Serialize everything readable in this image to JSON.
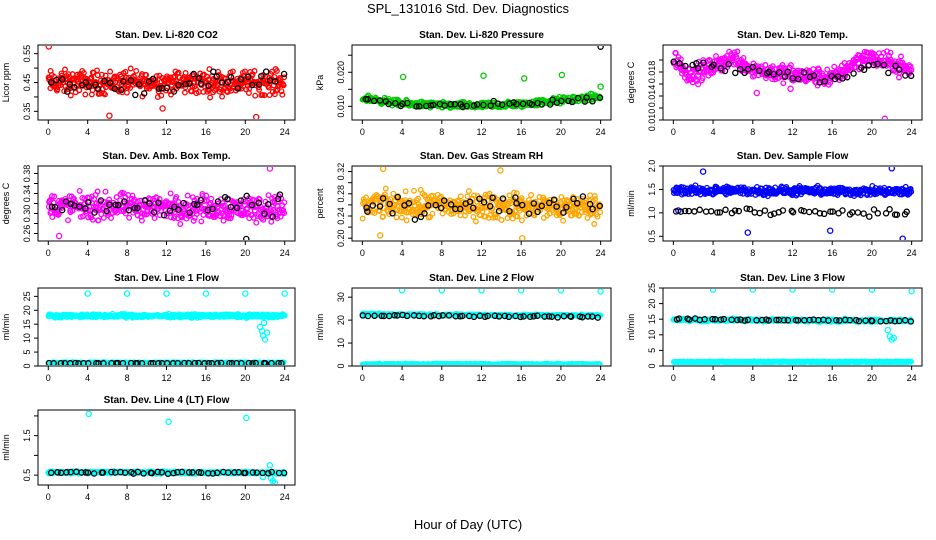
{
  "figure": {
    "title": "SPL_131016  Std. Dev. Diagnostics",
    "xlabel": "Hour of Day (UTC)"
  },
  "colors": {
    "black_series": "#000000",
    "red": "#ff0000",
    "green": "#00cc00",
    "magenta": "#ff00ff",
    "orange": "#ffa500",
    "blue": "#0000ff",
    "cyan": "#00ffff"
  },
  "chart_data": [
    {
      "type": "scatter",
      "title": "Stan. Dev. Li-820 CO2",
      "ylabel": "Licor ppm",
      "xlim": [
        0,
        24
      ],
      "ylim": [
        0.32,
        0.58
      ],
      "yticks": [
        0.35,
        0.4,
        0.45,
        0.5,
        0.55
      ],
      "ytick_labels": [
        "0.35",
        "",
        "0.45",
        "",
        "0.55"
      ],
      "xticks": [
        0,
        4,
        8,
        12,
        16,
        20,
        24
      ],
      "grid": false,
      "series": [
        {
          "color": "#ff0000",
          "n": 420,
          "baseline": [
            [
              0,
              0.45
            ],
            [
              24,
              0.45
            ]
          ],
          "spread": 0.035,
          "outliers": [
            [
              0.05,
              0.575
            ],
            [
              6.2,
              0.335
            ],
            [
              21.1,
              0.33
            ],
            [
              11.6,
              0.36
            ]
          ]
        },
        {
          "color": "#000000",
          "n": 48,
          "baseline": [
            [
              0,
              0.44
            ],
            [
              24,
              0.45
            ]
          ],
          "spread": 0.03,
          "outliers": []
        }
      ]
    },
    {
      "type": "scatter",
      "title": "Stan. Dev. Li-820 Pressure",
      "ylabel": "kPa",
      "xlim": [
        0,
        24
      ],
      "ylim": [
        0.006,
        0.028
      ],
      "yticks": [
        0.01,
        0.015,
        0.02,
        0.025
      ],
      "ytick_labels": [
        "0.010",
        "",
        "0.020",
        ""
      ],
      "xticks": [
        0,
        4,
        8,
        12,
        16,
        20,
        24
      ],
      "grid": false,
      "series": [
        {
          "color": "#00cc00",
          "n": 420,
          "baseline": [
            [
              0,
              0.0125
            ],
            [
              4,
              0.0108
            ],
            [
              8,
              0.0103
            ],
            [
              12,
              0.0102
            ],
            [
              16,
              0.0106
            ],
            [
              20,
              0.0118
            ],
            [
              24,
              0.0128
            ]
          ],
          "spread": 0.0008,
          "outliers": [
            [
              4.1,
              0.0186
            ],
            [
              12.2,
              0.019
            ],
            [
              16.3,
              0.0182
            ],
            [
              20.1,
              0.0192
            ],
            [
              24,
              0.0158
            ]
          ]
        },
        {
          "color": "#000000",
          "n": 48,
          "baseline": [
            [
              0,
              0.012
            ],
            [
              4,
              0.0105
            ],
            [
              12,
              0.0102
            ],
            [
              20,
              0.0114
            ],
            [
              24,
              0.0122
            ]
          ],
          "spread": 0.0008,
          "outliers": [
            [
              24,
              0.0275
            ]
          ]
        }
      ]
    },
    {
      "type": "scatter",
      "title": "Stan. Dev. Li-820 Temp.",
      "ylabel": "degrees C",
      "xlim": [
        0,
        24
      ],
      "ylim": [
        0.01,
        0.0225
      ],
      "yticks": [
        0.01,
        0.012,
        0.014,
        0.016,
        0.018,
        0.02
      ],
      "ytick_labels": [
        "0.010",
        "",
        "0.014",
        "",
        "0.018",
        ""
      ],
      "xticks": [
        0,
        4,
        8,
        12,
        16,
        20,
        24
      ],
      "grid": false,
      "series": [
        {
          "color": "#ff00ff",
          "n": 420,
          "baseline": [
            [
              0,
              0.0205
            ],
            [
              1.5,
              0.0175
            ],
            [
              4,
              0.0188
            ],
            [
              6,
              0.0205
            ],
            [
              8,
              0.0185
            ],
            [
              12,
              0.0175
            ],
            [
              16,
              0.017
            ],
            [
              19,
              0.0205
            ],
            [
              22,
              0.0195
            ],
            [
              24,
              0.0182
            ]
          ],
          "spread": 0.0013,
          "outliers": [
            [
              21.3,
              0.0102
            ],
            [
              2.5,
              0.016
            ],
            [
              8.4,
              0.0145
            ],
            [
              11.8,
              0.0152
            ]
          ]
        },
        {
          "color": "#000000",
          "n": 48,
          "baseline": [
            [
              0,
              0.0195
            ],
            [
              4,
              0.0188
            ],
            [
              8,
              0.0183
            ],
            [
              12,
              0.0175
            ],
            [
              16,
              0.017
            ],
            [
              20,
              0.019
            ],
            [
              24,
              0.0178
            ]
          ],
          "spread": 0.0008,
          "outliers": []
        }
      ]
    },
    {
      "type": "scatter",
      "title": "Stan. Dev. Amb. Box Temp.",
      "ylabel": "degrees C",
      "xlim": [
        0,
        24
      ],
      "ylim": [
        0.245,
        0.395
      ],
      "yticks": [
        0.26,
        0.28,
        0.3,
        0.32,
        0.34,
        0.36,
        0.38
      ],
      "ytick_labels": [
        "0.26",
        "",
        "0.30",
        "",
        "0.34",
        "",
        "0.38"
      ],
      "xticks": [
        0,
        4,
        8,
        12,
        16,
        20,
        24
      ],
      "grid": false,
      "series": [
        {
          "color": "#ff00ff",
          "n": 420,
          "baseline": [
            [
              0,
              0.315
            ],
            [
              24,
              0.31
            ]
          ],
          "spread": 0.022,
          "outliers": [
            [
              22.5,
              0.39
            ],
            [
              1.1,
              0.255
            ]
          ]
        },
        {
          "color": "#000000",
          "n": 48,
          "baseline": [
            [
              0,
              0.315
            ],
            [
              24,
              0.31
            ]
          ],
          "spread": 0.02,
          "outliers": [
            [
              20.1,
              0.249
            ]
          ]
        }
      ]
    },
    {
      "type": "scatter",
      "title": "Stan. Dev. Gas Stream RH",
      "ylabel": "percent",
      "xlim": [
        0,
        24
      ],
      "ylim": [
        0.195,
        0.33
      ],
      "yticks": [
        0.2,
        0.22,
        0.24,
        0.26,
        0.28,
        0.3,
        0.32
      ],
      "ytick_labels": [
        "0.20",
        "",
        "0.24",
        "",
        "0.28",
        "",
        "0.32"
      ],
      "xticks": [
        0,
        4,
        8,
        12,
        16,
        20,
        24
      ],
      "grid": false,
      "series": [
        {
          "color": "#ffa500",
          "n": 420,
          "baseline": [
            [
              0,
              0.26
            ],
            [
              24,
              0.255
            ]
          ],
          "spread": 0.02,
          "outliers": [
            [
              2.1,
              0.325
            ],
            [
              13.9,
              0.322
            ],
            [
              1.8,
              0.205
            ],
            [
              16.1,
              0.2
            ]
          ]
        },
        {
          "color": "#000000",
          "n": 48,
          "baseline": [
            [
              0,
              0.262
            ],
            [
              24,
              0.255
            ]
          ],
          "spread": 0.02,
          "outliers": []
        }
      ]
    },
    {
      "type": "scatter",
      "title": "Stan. Dev. Sample Flow",
      "ylabel": "ml/min",
      "xlim": [
        0,
        24
      ],
      "ylim": [
        0.4,
        2.0
      ],
      "yticks": [
        0.5,
        1.0,
        1.5,
        2.0
      ],
      "ytick_labels": [
        "0.5",
        "1.0",
        "1.5",
        "2.0"
      ],
      "xticks": [
        0,
        4,
        8,
        12,
        16,
        20,
        24
      ],
      "grid": false,
      "series": [
        {
          "color": "#0000ff",
          "n": 420,
          "baseline": [
            [
              0,
              1.48
            ],
            [
              24,
              1.45
            ]
          ],
          "spread": 0.08,
          "outliers": [
            [
              3.0,
              1.88
            ],
            [
              7.5,
              0.58
            ],
            [
              15.8,
              0.62
            ],
            [
              23.1,
              0.45
            ],
            [
              22.0,
              1.95
            ],
            [
              0.5,
              1.05
            ]
          ]
        },
        {
          "color": "#000000",
          "n": 48,
          "baseline": [
            [
              0,
              1.05
            ],
            [
              24,
              1.0
            ]
          ],
          "spread": 0.06,
          "outliers": []
        }
      ]
    },
    {
      "type": "scatter",
      "title": "Stan. Dev. Line 1 Flow",
      "ylabel": "ml/min",
      "xlim": [
        0,
        24
      ],
      "ylim": [
        0,
        28
      ],
      "yticks": [
        0,
        5,
        10,
        15,
        20,
        25
      ],
      "ytick_labels": [
        "0",
        "5",
        "10",
        "15",
        "20",
        "25"
      ],
      "xticks": [
        0,
        4,
        8,
        12,
        16,
        20,
        24
      ],
      "grid": false,
      "series": [
        {
          "color": "#00ffff",
          "n": 420,
          "baseline": [
            [
              0,
              18.0
            ],
            [
              24,
              18.0
            ]
          ],
          "spread": 0.5,
          "outliers": [
            [
              4.0,
              26.0
            ],
            [
              8.0,
              26.0
            ],
            [
              12.0,
              26.0
            ],
            [
              16.0,
              26.0
            ],
            [
              20.0,
              26.0
            ],
            [
              24.0,
              26.0
            ],
            [
              21.5,
              14.0
            ],
            [
              21.7,
              12.5
            ],
            [
              21.8,
              11.0
            ],
            [
              22.0,
              9.5
            ],
            [
              22.2,
              12.0
            ],
            [
              21.9,
              15.5
            ]
          ]
        },
        {
          "color": "#00ffff",
          "n": 200,
          "baseline": [
            [
              0,
              1.2
            ],
            [
              24,
              1.2
            ]
          ],
          "spread": 0.15,
          "outliers": []
        },
        {
          "color": "#000000",
          "n": 48,
          "baseline": [
            [
              0,
              1.0
            ],
            [
              24,
              1.0
            ]
          ],
          "spread": 0.05,
          "outliers": []
        }
      ]
    },
    {
      "type": "scatter",
      "title": "Stan. Dev. Line 2 Flow",
      "ylabel": "ml/min",
      "xlim": [
        0,
        24
      ],
      "ylim": [
        0,
        34
      ],
      "yticks": [
        0,
        10,
        20,
        30
      ],
      "ytick_labels": [
        "0",
        "10",
        "20",
        "30"
      ],
      "xticks": [
        0,
        4,
        8,
        12,
        16,
        20,
        24
      ],
      "grid": false,
      "series": [
        {
          "color": "#00ffff",
          "n": 300,
          "baseline": [
            [
              0,
              22.5
            ],
            [
              24,
              22.0
            ]
          ],
          "spread": 0.35,
          "outliers": [
            [
              4.0,
              33.0
            ],
            [
              8.0,
              33.0
            ],
            [
              12.0,
              33.0
            ],
            [
              16.0,
              33.0
            ],
            [
              20.0,
              33.0
            ],
            [
              24.0,
              32.5
            ]
          ]
        },
        {
          "color": "#00ffff",
          "n": 250,
          "baseline": [
            [
              0,
              0.8
            ],
            [
              24,
              0.8
            ]
          ],
          "spread": 0.2,
          "outliers": []
        },
        {
          "color": "#000000",
          "n": 48,
          "baseline": [
            [
              0,
              22.0
            ],
            [
              24,
              21.5
            ]
          ],
          "spread": 0.3,
          "outliers": []
        }
      ]
    },
    {
      "type": "scatter",
      "title": "Stan. Dev. Line 3 Flow",
      "ylabel": "ml/min",
      "xlim": [
        0,
        24
      ],
      "ylim": [
        0,
        25
      ],
      "yticks": [
        0,
        5,
        10,
        15,
        20,
        25
      ],
      "ytick_labels": [
        "0",
        "5",
        "10",
        "15",
        "20",
        "25"
      ],
      "xticks": [
        0,
        4,
        8,
        12,
        16,
        20,
        24
      ],
      "grid": false,
      "series": [
        {
          "color": "#00ffff",
          "n": 300,
          "baseline": [
            [
              0,
              14.8
            ],
            [
              24,
              14.5
            ]
          ],
          "spread": 0.4,
          "outliers": [
            [
              4.0,
              24.5
            ],
            [
              8.0,
              24.5
            ],
            [
              12.0,
              24.5
            ],
            [
              16.0,
              24.5
            ],
            [
              20.0,
              24.5
            ],
            [
              24.0,
              24.0
            ],
            [
              21.8,
              9.5
            ],
            [
              22.0,
              8.5
            ],
            [
              22.2,
              9.0
            ],
            [
              21.6,
              11.5
            ]
          ]
        },
        {
          "color": "#00ffff",
          "n": 300,
          "baseline": [
            [
              0,
              1.3
            ],
            [
              24,
              1.3
            ]
          ],
          "spread": 0.15,
          "outliers": []
        },
        {
          "color": "#000000",
          "n": 48,
          "baseline": [
            [
              0,
              15.0
            ],
            [
              24,
              14.5
            ]
          ],
          "spread": 0.2,
          "outliers": []
        }
      ]
    },
    {
      "type": "scatter",
      "title": "Stan. Dev. Line 4 (LT) Flow",
      "ylabel": "ml/min",
      "xlim": [
        0,
        24
      ],
      "ylim": [
        0.25,
        2.15
      ],
      "yticks": [
        0.5,
        1.0,
        1.5,
        2.0
      ],
      "ytick_labels": [
        "0.5",
        "",
        "1.5",
        ""
      ],
      "xticks": [
        0,
        4,
        8,
        12,
        16,
        20,
        24
      ],
      "grid": false,
      "series": [
        {
          "color": "#00ffff",
          "n": 420,
          "baseline": [
            [
              0,
              0.57
            ],
            [
              24,
              0.56
            ]
          ],
          "spread": 0.025,
          "outliers": [
            [
              4.1,
              2.05
            ],
            [
              12.2,
              1.85
            ],
            [
              20.1,
              1.95
            ],
            [
              22.5,
              0.75
            ],
            [
              22.8,
              0.35
            ],
            [
              23.0,
              0.3
            ],
            [
              22.6,
              0.42
            ],
            [
              21.8,
              0.45
            ]
          ]
        },
        {
          "color": "#000000",
          "n": 48,
          "baseline": [
            [
              0,
              0.57
            ],
            [
              24,
              0.56
            ]
          ],
          "spread": 0.02,
          "outliers": []
        }
      ]
    }
  ]
}
